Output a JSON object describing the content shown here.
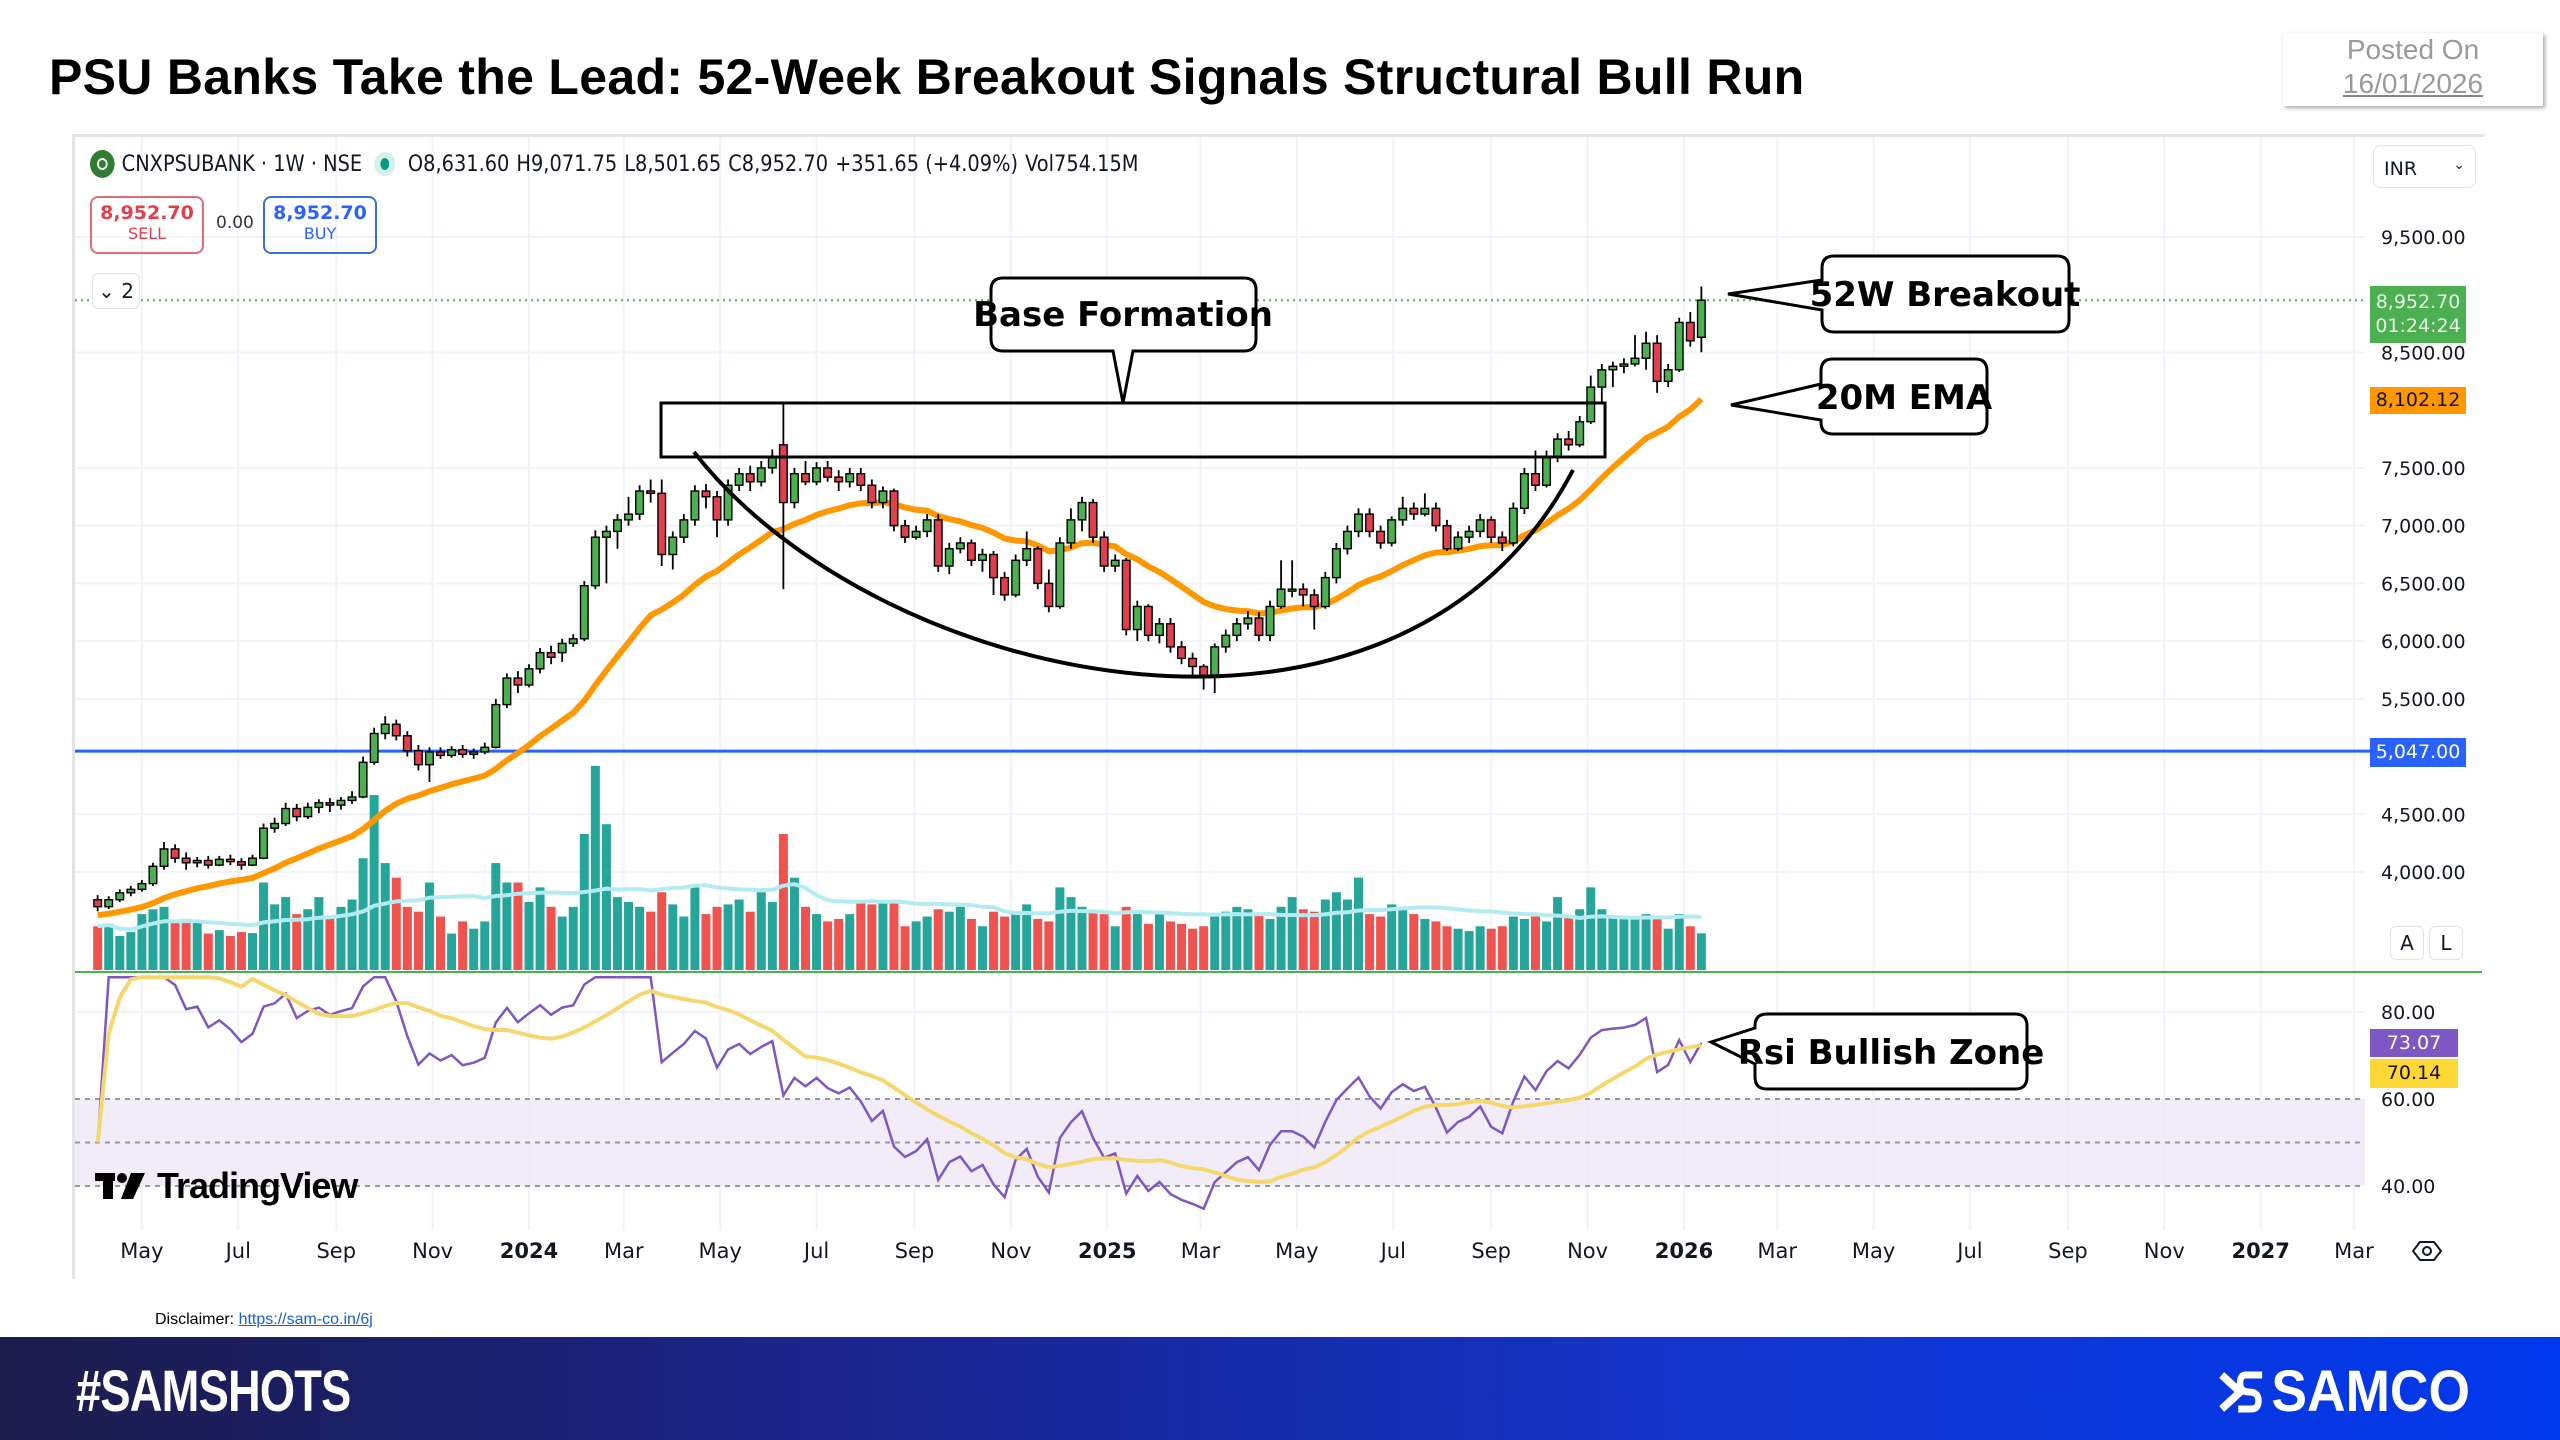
{
  "header": {
    "title": "PSU Banks Take the Lead: 52-Week Breakout Signals Structural Bull Run",
    "posted_label": "Posted On",
    "posted_date": "16/01/2026"
  },
  "legend": {
    "symbol": "CNXPSUBANK · 1W · NSE",
    "open": "O8,631.60",
    "high": "H9,071.75",
    "low": "L8,501.65",
    "close": "C8,952.70",
    "change": "+351.65 (+4.09%)",
    "volume": "Vol754.15M",
    "up_color": "#089981"
  },
  "trade": {
    "sell_price": "8,952.70",
    "sell_label": "SELL",
    "spread": "0.00",
    "buy_price": "8,952.70",
    "buy_label": "BUY",
    "collapse_label": "2"
  },
  "currency": "INR",
  "scale_buttons": {
    "auto": "A",
    "log": "L"
  },
  "price_tags": {
    "last": "8,952.70",
    "countdown": "01:24:24",
    "last_color": "#4caf50",
    "ema": "8,102.12",
    "ema_color": "#ff9800",
    "hline": "5,047.00",
    "hline_color": "#2962ff",
    "rsi": "73.07",
    "rsi_color": "#7e57c2",
    "rsi_ma": "70.14",
    "rsi_ma_color": "#fdd835"
  },
  "annotations": {
    "base": "Base Formation",
    "breakout": "52W Breakout",
    "ema": "20M EMA",
    "rsi": "Rsi Bullish Zone"
  },
  "watermark": "TradingView",
  "disclaimer": {
    "label": "Disclaimer:",
    "link": "https://sam-co.in/6j"
  },
  "footer": {
    "hashtag": "#SAMSHOTS",
    "brand": "SAMCO"
  },
  "chart_data": {
    "type": "candlestick",
    "interval": "1W",
    "price_ticks": [
      9500,
      8500,
      7500,
      7000,
      6500,
      6000,
      5500,
      4500,
      4000
    ],
    "price_tick_labels": [
      "9,500.00",
      "8,500.00",
      "7,500.00",
      "7,000.00",
      "6,500.00",
      "6,000.00",
      "5,500.00",
      "4,500.00",
      "4,000.00"
    ],
    "rsi_ticks": [
      80,
      60,
      40
    ],
    "rsi_tick_labels": [
      "80.00",
      "60.00",
      "40.00"
    ],
    "rsi_band": [
      40,
      60
    ],
    "horizontal_line": 5047,
    "ema_length": 20,
    "last_ema": 8102.12,
    "last_rsi": 73.07,
    "last_rsi_ma": 70.14,
    "time_labels": [
      {
        "label": "May",
        "date": "2023-05-01",
        "bold": false
      },
      {
        "label": "Jul",
        "date": "2023-07-01",
        "bold": false
      },
      {
        "label": "Sep",
        "date": "2023-09-01",
        "bold": false
      },
      {
        "label": "Nov",
        "date": "2023-11-01",
        "bold": false
      },
      {
        "label": "2024",
        "date": "2024-01-01",
        "bold": true
      },
      {
        "label": "Mar",
        "date": "2024-03-01",
        "bold": false
      },
      {
        "label": "May",
        "date": "2024-05-01",
        "bold": false
      },
      {
        "label": "Jul",
        "date": "2024-07-01",
        "bold": false
      },
      {
        "label": "Sep",
        "date": "2024-09-01",
        "bold": false
      },
      {
        "label": "Nov",
        "date": "2024-11-01",
        "bold": false
      },
      {
        "label": "2025",
        "date": "2025-01-01",
        "bold": true
      },
      {
        "label": "Mar",
        "date": "2025-03-01",
        "bold": false
      },
      {
        "label": "May",
        "date": "2025-05-01",
        "bold": false
      },
      {
        "label": "Jul",
        "date": "2025-07-01",
        "bold": false
      },
      {
        "label": "Sep",
        "date": "2025-09-01",
        "bold": false
      },
      {
        "label": "Nov",
        "date": "2025-11-01",
        "bold": false
      },
      {
        "label": "2026",
        "date": "2026-01-01",
        "bold": true
      },
      {
        "label": "Mar",
        "date": "2026-03-01",
        "bold": false
      },
      {
        "label": "May",
        "date": "2026-05-01",
        "bold": false
      },
      {
        "label": "Jul",
        "date": "2026-07-01",
        "bold": false
      },
      {
        "label": "Sep",
        "date": "2026-09-01",
        "bold": false
      },
      {
        "label": "Nov",
        "date": "2026-11-01",
        "bold": false
      },
      {
        "label": "2027",
        "date": "2027-01-01",
        "bold": true
      },
      {
        "label": "Mar",
        "date": "2027-03-01",
        "bold": false
      }
    ],
    "colors": {
      "up": "#4caf50",
      "down": "#e0404e",
      "vol_up": "#26a69a",
      "vol_down": "#ef5350",
      "ema": "#ff9800",
      "vol_ma": "#b2ebf2",
      "rsi": "#7e57c2",
      "rsi_ma": "#f5d76e",
      "band": "#ede7f6"
    },
    "ohlcv_fields": [
      "open",
      "high",
      "low",
      "close",
      "volume_M"
    ],
    "candles": [
      [
        3760,
        3800,
        3660,
        3700,
        900
      ],
      [
        3700,
        3790,
        3680,
        3760,
        950
      ],
      [
        3760,
        3850,
        3740,
        3820,
        700
      ],
      [
        3820,
        3880,
        3790,
        3850,
        780
      ],
      [
        3850,
        3930,
        3830,
        3900,
        1150
      ],
      [
        3900,
        4080,
        3880,
        4050,
        1250
      ],
      [
        4050,
        4260,
        4020,
        4200,
        1300
      ],
      [
        4200,
        4240,
        4080,
        4120,
        1000
      ],
      [
        4120,
        4170,
        4020,
        4080,
        1050
      ],
      [
        4080,
        4130,
        4040,
        4100,
        980
      ],
      [
        4100,
        4140,
        4030,
        4060,
        750
      ],
      [
        4060,
        4140,
        4050,
        4110,
        820
      ],
      [
        4110,
        4150,
        4060,
        4090,
        700
      ],
      [
        4090,
        4120,
        4020,
        4060,
        780
      ],
      [
        4060,
        4150,
        4050,
        4120,
        760
      ],
      [
        4120,
        4420,
        4110,
        4380,
        1800
      ],
      [
        4380,
        4470,
        4340,
        4420,
        1350
      ],
      [
        4420,
        4600,
        4400,
        4550,
        1500
      ],
      [
        4550,
        4590,
        4440,
        4480,
        1150
      ],
      [
        4480,
        4600,
        4460,
        4560,
        1250
      ],
      [
        4560,
        4630,
        4510,
        4600,
        1500
      ],
      [
        4600,
        4640,
        4520,
        4580,
        1100
      ],
      [
        4580,
        4650,
        4540,
        4620,
        1300
      ],
      [
        4620,
        4700,
        4590,
        4650,
        1450
      ],
      [
        4650,
        5000,
        4640,
        4950,
        2300
      ],
      [
        4950,
        5250,
        4930,
        5200,
        3600
      ],
      [
        5200,
        5350,
        5150,
        5280,
        2200
      ],
      [
        5280,
        5320,
        5140,
        5180,
        1900
      ],
      [
        5180,
        5220,
        5000,
        5050,
        1300
      ],
      [
        5050,
        5100,
        4880,
        4930,
        1200
      ],
      [
        4930,
        5080,
        4780,
        5040,
        1800
      ],
      [
        5040,
        5080,
        4980,
        5010,
        1100
      ],
      [
        5010,
        5090,
        4990,
        5060,
        750
      ],
      [
        5060,
        5100,
        4990,
        5020,
        1000
      ],
      [
        5020,
        5070,
        4980,
        5040,
        850
      ],
      [
        5040,
        5120,
        5020,
        5080,
        1000
      ],
      [
        5080,
        5500,
        5070,
        5450,
        2200
      ],
      [
        5450,
        5720,
        5420,
        5680,
        1800
      ],
      [
        5680,
        5740,
        5550,
        5620,
        1800
      ],
      [
        5620,
        5800,
        5600,
        5760,
        1400
      ],
      [
        5760,
        5940,
        5720,
        5900,
        1700
      ],
      [
        5900,
        5960,
        5800,
        5860,
        1300
      ],
      [
        5900,
        6020,
        5820,
        5980,
        1100
      ],
      [
        5980,
        6060,
        5950,
        6020,
        1300
      ],
      [
        6020,
        6520,
        6000,
        6480,
        2800
      ],
      [
        6480,
        6960,
        6450,
        6900,
        4200
      ],
      [
        6900,
        7000,
        6500,
        6950,
        3000
      ],
      [
        6950,
        7100,
        6800,
        7050,
        1500
      ],
      [
        7050,
        7250,
        7000,
        7100,
        1400
      ],
      [
        7100,
        7350,
        7050,
        7300,
        1300
      ],
      [
        7300,
        7400,
        7200,
        7280,
        1200
      ],
      [
        7280,
        7400,
        6650,
        6750,
        1600
      ],
      [
        6750,
        6950,
        6620,
        6900,
        1350
      ],
      [
        6900,
        7100,
        6850,
        7050,
        1100
      ],
      [
        7050,
        7350,
        7000,
        7300,
        1700
      ],
      [
        7300,
        7360,
        7150,
        7250,
        1150
      ],
      [
        7250,
        7300,
        6900,
        7050,
        1300
      ],
      [
        7050,
        7400,
        7000,
        7350,
        1350
      ],
      [
        7350,
        7500,
        7300,
        7450,
        1450
      ],
      [
        7450,
        7520,
        7300,
        7380,
        1200
      ],
      [
        7380,
        7560,
        7340,
        7500,
        1600
      ],
      [
        7500,
        7660,
        7450,
        7600,
        1400
      ],
      [
        7700,
        8060,
        6450,
        7200,
        2800
      ],
      [
        7200,
        7500,
        7150,
        7450,
        1900
      ],
      [
        7450,
        7560,
        7350,
        7380,
        1300
      ],
      [
        7380,
        7550,
        7350,
        7500,
        1150
      ],
      [
        7500,
        7560,
        7380,
        7420,
        1000
      ],
      [
        7420,
        7480,
        7300,
        7380,
        1050
      ],
      [
        7380,
        7500,
        7330,
        7450,
        1150
      ],
      [
        7450,
        7500,
        7300,
        7350,
        1400
      ],
      [
        7350,
        7400,
        7150,
        7200,
        1350
      ],
      [
        7200,
        7340,
        7150,
        7300,
        1400
      ],
      [
        7300,
        7320,
        6950,
        7000,
        1400
      ],
      [
        7000,
        7050,
        6850,
        6900,
        900
      ],
      [
        6900,
        7000,
        6880,
        6950,
        1000
      ],
      [
        6950,
        7100,
        6900,
        7050,
        1100
      ],
      [
        7050,
        7100,
        6600,
        6650,
        1250
      ],
      [
        6650,
        6850,
        6580,
        6800,
        1200
      ],
      [
        6800,
        6900,
        6760,
        6850,
        1300
      ],
      [
        6850,
        6880,
        6650,
        6700,
        1050
      ],
      [
        6700,
        6800,
        6600,
        6750,
        900
      ],
      [
        6750,
        6780,
        6400,
        6550,
        1200
      ],
      [
        6550,
        6600,
        6350,
        6400,
        1100
      ],
      [
        6400,
        6750,
        6380,
        6700,
        1200
      ],
      [
        6700,
        6950,
        6650,
        6800,
        1350
      ],
      [
        6800,
        6820,
        6450,
        6500,
        1050
      ],
      [
        6500,
        6620,
        6250,
        6300,
        1000
      ],
      [
        6300,
        6900,
        6280,
        6850,
        1700
      ],
      [
        6850,
        7150,
        6800,
        7050,
        1500
      ],
      [
        7050,
        7250,
        6950,
        7200,
        1300
      ],
      [
        7200,
        7230,
        6850,
        6900,
        1200
      ],
      [
        6900,
        6950,
        6600,
        6650,
        1150
      ],
      [
        6650,
        6750,
        6600,
        6700,
        900
      ],
      [
        6700,
        6720,
        6050,
        6100,
        1300
      ],
      [
        6100,
        6350,
        6000,
        6300,
        1150
      ],
      [
        6300,
        6320,
        6000,
        6050,
        950
      ],
      [
        6050,
        6200,
        5980,
        6150,
        1150
      ],
      [
        6150,
        6200,
        5900,
        5950,
        1000
      ],
      [
        5950,
        6000,
        5800,
        5850,
        950
      ],
      [
        5850,
        5900,
        5700,
        5780,
        850
      ],
      [
        5780,
        5800,
        5580,
        5700,
        900
      ],
      [
        5700,
        5980,
        5550,
        5950,
        1100
      ],
      [
        5950,
        6100,
        5900,
        6050,
        1200
      ],
      [
        6050,
        6200,
        6000,
        6150,
        1300
      ],
      [
        6150,
        6260,
        6100,
        6200,
        1250
      ],
      [
        6200,
        6250,
        6000,
        6050,
        1150
      ],
      [
        6050,
        6350,
        6000,
        6300,
        1050
      ],
      [
        6300,
        6700,
        6280,
        6450,
        1300
      ],
      [
        6450,
        6700,
        6380,
        6450,
        1500
      ],
      [
        6450,
        6500,
        6300,
        6400,
        1250
      ],
      [
        6400,
        6450,
        6100,
        6300,
        1200
      ],
      [
        6300,
        6600,
        6280,
        6550,
        1450
      ],
      [
        6550,
        6850,
        6500,
        6800,
        1600
      ],
      [
        6800,
        7000,
        6750,
        6950,
        1450
      ],
      [
        6950,
        7150,
        6900,
        7100,
        1900
      ],
      [
        7100,
        7150,
        6900,
        6950,
        1150
      ],
      [
        6950,
        7000,
        6800,
        6850,
        1100
      ],
      [
        6850,
        7080,
        6820,
        7050,
        1350
      ],
      [
        7050,
        7250,
        7000,
        7150,
        1300
      ],
      [
        7150,
        7200,
        7050,
        7100,
        1150
      ],
      [
        7100,
        7280,
        7080,
        7150,
        1050
      ],
      [
        7150,
        7200,
        6950,
        7000,
        1000
      ],
      [
        7000,
        7050,
        6780,
        6800,
        900
      ],
      [
        6800,
        6950,
        6780,
        6900,
        850
      ],
      [
        6900,
        7000,
        6850,
        6950,
        800
      ],
      [
        6950,
        7100,
        6900,
        7050,
        900
      ],
      [
        7050,
        7080,
        6850,
        6900,
        850
      ],
      [
        6900,
        6950,
        6780,
        6850,
        900
      ],
      [
        6850,
        7200,
        6820,
        7150,
        1100
      ],
      [
        7150,
        7500,
        7100,
        7450,
        1050
      ],
      [
        7450,
        7650,
        7300,
        7350,
        1100
      ],
      [
        7350,
        7650,
        7330,
        7600,
        1000
      ],
      [
        7600,
        7800,
        7550,
        7750,
        1500
      ],
      [
        7750,
        7820,
        7650,
        7700,
        1100
      ],
      [
        7700,
        7950,
        7680,
        7900,
        1250
      ],
      [
        7900,
        8300,
        7880,
        8200,
        1700
      ],
      [
        8200,
        8400,
        8050,
        8350,
        1250
      ],
      [
        8350,
        8420,
        8200,
        8380,
        1100
      ],
      [
        8380,
        8450,
        8320,
        8400,
        1050
      ],
      [
        8400,
        8650,
        8380,
        8450,
        1050
      ],
      [
        8450,
        8680,
        8350,
        8580,
        1150
      ],
      [
        8580,
        8650,
        8150,
        8250,
        1050
      ],
      [
        8250,
        8400,
        8200,
        8350,
        850
      ],
      [
        8350,
        8800,
        8330,
        8760,
        1150
      ],
      [
        8760,
        8850,
        8550,
        8601.05,
        900
      ],
      [
        8631.6,
        9071.75,
        8501.65,
        8952.7,
        754.15
      ]
    ]
  }
}
